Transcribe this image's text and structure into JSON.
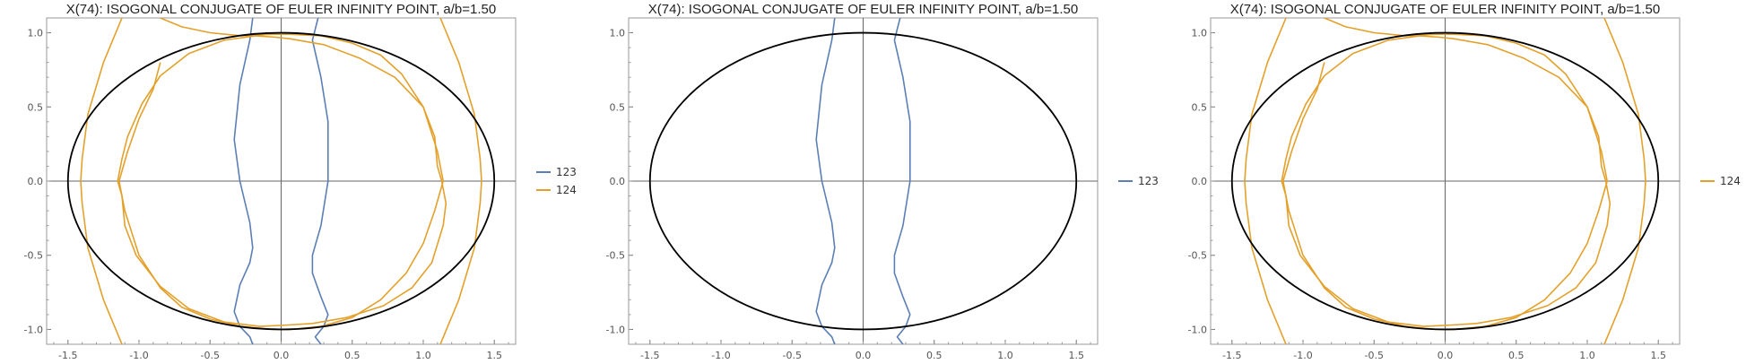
{
  "colors": {
    "s123": "#5b7fb5",
    "s124": "#e3a12b",
    "ellipse": "#000000",
    "axis": "#666666"
  },
  "chart_data": [
    {
      "type": "line",
      "title": "X(74): ISOGONAL CONJUGATE OF EULER INFINITY POINT, a/b=1.50",
      "xlim": [
        -1.65,
        1.65
      ],
      "ylim": [
        -1.1,
        1.1
      ],
      "xticks": [
        "-1.5",
        "-1.0",
        "-0.5",
        "0.0",
        "0.5",
        "1.0",
        "1.5"
      ],
      "yticks": [
        "-1.0",
        "-0.5",
        "0.0",
        "0.5",
        "1.0"
      ],
      "ellipse": {
        "a": 1.5,
        "b": 1.0
      },
      "legend": [
        "123",
        "124"
      ],
      "legend_placement": "right",
      "series": [
        {
          "name": "123",
          "color": "s123",
          "curves": [
            {
              "x": [
                -0.2,
                -0.22,
                -0.29,
                -0.33,
                -0.29,
                -0.22,
                -0.2,
                -0.22,
                -0.29,
                -0.33,
                -0.29,
                -0.22,
                -0.2
              ],
              "y": [
                1.1,
                0.95,
                0.65,
                0.28,
                0.0,
                -0.28,
                -0.45,
                -0.55,
                -0.7,
                -0.88,
                -0.98,
                -1.05,
                -1.1
              ]
            },
            {
              "x": [
                0.26,
                0.22,
                0.28,
                0.33,
                0.33,
                0.28,
                0.22,
                0.22,
                0.28,
                0.33,
                0.3,
                0.24,
                0.28
              ],
              "y": [
                1.1,
                0.95,
                0.7,
                0.4,
                0.0,
                -0.3,
                -0.5,
                -0.62,
                -0.78,
                -0.9,
                -0.98,
                -1.05,
                -1.1
              ]
            }
          ]
        },
        {
          "name": "124",
          "color": "s124",
          "curves": [
            {
              "x": [
                -1.12,
                -1.25,
                -1.36,
                -1.4,
                -1.41,
                -1.4,
                -1.36,
                -1.25,
                -1.12
              ],
              "y": [
                1.1,
                0.8,
                0.45,
                0.15,
                0.0,
                -0.15,
                -0.45,
                -0.8,
                -1.1
              ]
            },
            {
              "x": [
                1.12,
                1.25,
                1.36,
                1.4,
                1.41,
                1.4,
                1.36,
                1.25,
                1.12
              ],
              "y": [
                1.1,
                0.8,
                0.45,
                0.15,
                0.0,
                -0.15,
                -0.45,
                -0.8,
                -1.1
              ]
            },
            {
              "x": [
                -0.85,
                -0.65,
                -0.4,
                -0.18,
                -0.04,
                0.06,
                0.3,
                0.55,
                0.8,
                1.0,
                1.08,
                1.1,
                1.13,
                1.16,
                1.14,
                1.06,
                0.92,
                0.72,
                0.46,
                0.22,
                0.05,
                -0.15,
                -0.4,
                -0.65,
                -0.85,
                -1.02,
                -1.1,
                -1.12,
                -1.15,
                -1.12,
                -1.08,
                -0.98,
                -0.85
              ],
              "y": [
                0.71,
                0.86,
                0.95,
                0.98,
                0.97,
                0.96,
                0.92,
                0.83,
                0.7,
                0.5,
                0.3,
                0.1,
                0.0,
                -0.15,
                -0.3,
                -0.55,
                -0.72,
                -0.84,
                -0.92,
                -0.96,
                -0.97,
                -0.98,
                -0.95,
                -0.86,
                -0.71,
                -0.5,
                -0.3,
                -0.1,
                0.0,
                0.15,
                0.3,
                0.52,
                0.71
              ]
            },
            {
              "x": [
                -0.85,
                -0.7,
                -0.5,
                -0.28,
                -0.06,
                0.06,
                0.28,
                0.5,
                0.7,
                0.85,
                1.0,
                1.1,
                1.14,
                1.08,
                1.0,
                0.88,
                0.7,
                0.5,
                0.28,
                0.06,
                -0.06,
                -0.28,
                -0.5,
                -0.7,
                -0.85,
                -1.0,
                -1.1,
                -1.14,
                -1.08,
                -1.0,
                -0.9,
                -0.85
              ],
              "y": [
                1.1,
                1.04,
                1.0,
                0.98,
                0.99,
                0.99,
                0.98,
                0.93,
                0.85,
                0.72,
                0.5,
                0.2,
                0.0,
                -0.2,
                -0.42,
                -0.62,
                -0.8,
                -0.92,
                -0.98,
                -1.0,
                -1.0,
                -0.98,
                -0.93,
                -0.85,
                -0.72,
                -0.5,
                -0.2,
                0.0,
                0.2,
                0.42,
                0.62,
                0.8
              ]
            }
          ]
        }
      ]
    },
    {
      "type": "line",
      "title": "X(74): ISOGONAL CONJUGATE OF EULER INFINITY POINT, a/b=1.50",
      "xlim": [
        -1.65,
        1.65
      ],
      "ylim": [
        -1.1,
        1.1
      ],
      "xticks": [
        "-1.5",
        "-1.0",
        "-0.5",
        "0.0",
        "0.5",
        "1.0",
        "1.5"
      ],
      "yticks": [
        "-1.0",
        "-0.5",
        "0.0",
        "0.5",
        "1.0"
      ],
      "ellipse": {
        "a": 1.5,
        "b": 1.0
      },
      "legend": [
        "123"
      ],
      "legend_placement": "right",
      "series": [
        {
          "name": "123",
          "color": "s123",
          "curves": [
            {
              "x": [
                -0.2,
                -0.22,
                -0.29,
                -0.33,
                -0.29,
                -0.22,
                -0.2,
                -0.22,
                -0.29,
                -0.33,
                -0.29,
                -0.22,
                -0.2
              ],
              "y": [
                1.1,
                0.95,
                0.65,
                0.28,
                0.0,
                -0.28,
                -0.45,
                -0.55,
                -0.7,
                -0.88,
                -0.98,
                -1.05,
                -1.1
              ]
            },
            {
              "x": [
                0.26,
                0.22,
                0.28,
                0.33,
                0.33,
                0.28,
                0.22,
                0.22,
                0.28,
                0.33,
                0.3,
                0.24,
                0.28
              ],
              "y": [
                1.1,
                0.95,
                0.7,
                0.4,
                0.0,
                -0.3,
                -0.5,
                -0.62,
                -0.78,
                -0.9,
                -0.98,
                -1.05,
                -1.1
              ]
            }
          ]
        }
      ]
    },
    {
      "type": "line",
      "title": "X(74): ISOGONAL CONJUGATE OF EULER INFINITY POINT, a/b=1.50",
      "xlim": [
        -1.65,
        1.65
      ],
      "ylim": [
        -1.1,
        1.1
      ],
      "xticks": [
        "-1.5",
        "-1.0",
        "-0.5",
        "0.0",
        "0.5",
        "1.0",
        "1.5"
      ],
      "yticks": [
        "-1.0",
        "-0.5",
        "0.0",
        "0.5",
        "1.0"
      ],
      "ellipse": {
        "a": 1.5,
        "b": 1.0
      },
      "legend": [
        "124"
      ],
      "legend_placement": "right",
      "series": [
        {
          "name": "124",
          "color": "s124",
          "curves": [
            {
              "x": [
                -1.12,
                -1.25,
                -1.36,
                -1.4,
                -1.41,
                -1.4,
                -1.36,
                -1.25,
                -1.12
              ],
              "y": [
                1.1,
                0.8,
                0.45,
                0.15,
                0.0,
                -0.15,
                -0.45,
                -0.8,
                -1.1
              ]
            },
            {
              "x": [
                1.12,
                1.25,
                1.36,
                1.4,
                1.41,
                1.4,
                1.36,
                1.25,
                1.12
              ],
              "y": [
                1.1,
                0.8,
                0.45,
                0.15,
                0.0,
                -0.15,
                -0.45,
                -0.8,
                -1.1
              ]
            },
            {
              "x": [
                -0.85,
                -0.65,
                -0.4,
                -0.18,
                -0.04,
                0.06,
                0.3,
                0.55,
                0.8,
                1.0,
                1.08,
                1.1,
                1.13,
                1.16,
                1.14,
                1.06,
                0.92,
                0.72,
                0.46,
                0.22,
                0.05,
                -0.15,
                -0.4,
                -0.65,
                -0.85,
                -1.02,
                -1.1,
                -1.12,
                -1.15,
                -1.12,
                -1.08,
                -0.98,
                -0.85
              ],
              "y": [
                0.71,
                0.86,
                0.95,
                0.98,
                0.97,
                0.96,
                0.92,
                0.83,
                0.7,
                0.5,
                0.3,
                0.1,
                0.0,
                -0.15,
                -0.3,
                -0.55,
                -0.72,
                -0.84,
                -0.92,
                -0.96,
                -0.97,
                -0.98,
                -0.95,
                -0.86,
                -0.71,
                -0.5,
                -0.3,
                -0.1,
                0.0,
                0.15,
                0.3,
                0.52,
                0.71
              ]
            },
            {
              "x": [
                -0.85,
                -0.7,
                -0.5,
                -0.28,
                -0.06,
                0.06,
                0.28,
                0.5,
                0.7,
                0.85,
                1.0,
                1.1,
                1.14,
                1.08,
                1.0,
                0.88,
                0.7,
                0.5,
                0.28,
                0.06,
                -0.06,
                -0.28,
                -0.5,
                -0.7,
                -0.85,
                -1.0,
                -1.1,
                -1.14,
                -1.08,
                -1.0,
                -0.9,
                -0.85
              ],
              "y": [
                1.1,
                1.04,
                1.0,
                0.98,
                0.99,
                0.99,
                0.98,
                0.93,
                0.85,
                0.72,
                0.5,
                0.2,
                0.0,
                -0.2,
                -0.42,
                -0.62,
                -0.8,
                -0.92,
                -0.98,
                -1.0,
                -1.0,
                -0.98,
                -0.93,
                -0.85,
                -0.72,
                -0.5,
                -0.2,
                0.0,
                0.2,
                0.42,
                0.62,
                0.8
              ]
            }
          ]
        }
      ]
    }
  ]
}
